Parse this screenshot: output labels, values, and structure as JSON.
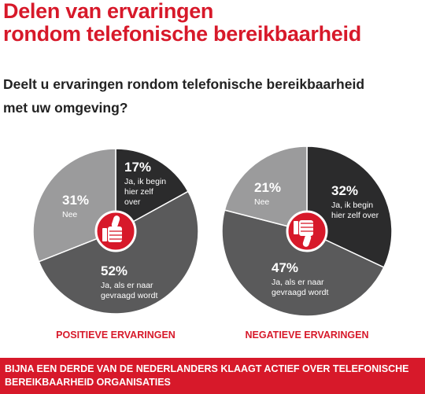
{
  "header": {
    "title_line1": "Delen van ervaringen",
    "title_line2": "rondom telefonische bereikbaarheid"
  },
  "question": {
    "line1": "Deelt u ervaringen rondom telefonische bereikbaarheid",
    "line2": "met uw omgeving?"
  },
  "icons": [
    "thumbs-up-icon",
    "thumbs-down-icon"
  ],
  "colors": {
    "accent_red": "#d7192a",
    "slice_dark": "#2b2b2c",
    "slice_mid": "#5a5a5b",
    "slice_light": "#9b9b9c"
  },
  "chart_data": [
    {
      "type": "pie",
      "title": "POSITIEVE ERVARINGEN",
      "slices": [
        {
          "value_label": "17%",
          "value": 17,
          "label_lines": [
            "Ja, ik begin",
            "hier zelf",
            "over"
          ],
          "color": "#2b2b2c"
        },
        {
          "value_label": "52%",
          "value": 52,
          "label_lines": [
            "Ja, als er naar",
            "gevraagd wordt"
          ],
          "color": "#5a5a5b"
        },
        {
          "value_label": "31%",
          "value": 31,
          "label_lines": [
            "Nee"
          ],
          "color": "#9b9b9c"
        }
      ]
    },
    {
      "type": "pie",
      "title": "NEGATIEVE ERVARINGEN",
      "slices": [
        {
          "value_label": "32%",
          "value": 32,
          "label_lines": [
            "Ja, ik begin",
            "hier zelf over"
          ],
          "color": "#2b2b2c"
        },
        {
          "value_label": "47%",
          "value": 47,
          "label_lines": [
            "Ja, als er naar",
            "gevraagd wordt"
          ],
          "color": "#5a5a5b"
        },
        {
          "value_label": "21%",
          "value": 21,
          "label_lines": [
            "Nee"
          ],
          "color": "#9b9b9c"
        }
      ]
    }
  ],
  "footer": {
    "line1": "BIJNA EEN DERDE VAN DE NEDERLANDERS KLAAGT ACTIEF OVER TELEFONISCHE",
    "line2": "BEREIKBAARHEID ORGANISATIES"
  }
}
